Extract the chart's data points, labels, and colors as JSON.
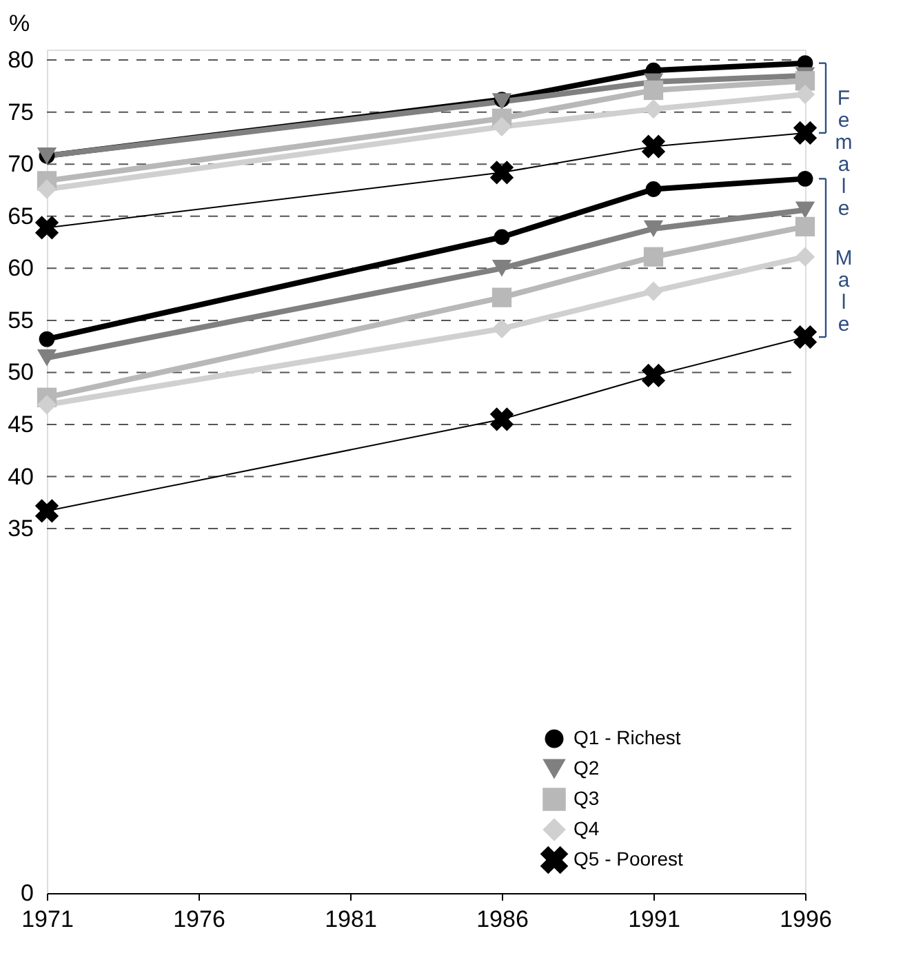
{
  "chart_data": {
    "type": "line",
    "ylabel": "%",
    "x": [
      1971,
      1986,
      1991,
      1996
    ],
    "xlim": [
      1971,
      1996
    ],
    "xticks": [
      1971,
      1976,
      1981,
      1986,
      1991,
      1996
    ],
    "ylim": [
      0,
      81
    ],
    "yticks": [
      0,
      35,
      40,
      45,
      50,
      55,
      60,
      65,
      70,
      75,
      80
    ],
    "grid": "y",
    "legend": "bottom right",
    "line_style": "solid",
    "annotations": [
      "Female",
      "Male"
    ],
    "series": [
      {
        "name": "Q1 - Richest",
        "color": "#000000",
        "marker": "circle",
        "values": [
          70.8,
          76.2,
          79.0,
          79.7
        ]
      },
      {
        "name": "Q2",
        "color": "#808080",
        "marker": "triangle",
        "values": [
          70.8,
          76.0,
          77.9,
          78.5
        ]
      },
      {
        "name": "Q3",
        "color": "#b8b8b8",
        "marker": "square",
        "values": [
          68.4,
          74.4,
          77.1,
          78.0
        ]
      },
      {
        "name": "Q4",
        "color": "#d0d0d0",
        "marker": "diamond",
        "values": [
          67.6,
          73.6,
          75.3,
          76.7
        ]
      },
      {
        "name": "Q5 - Poorest",
        "color": "#000000",
        "marker": "cross",
        "values": [
          63.9,
          69.2,
          71.7,
          73.0
        ]
      },
      {
        "color": "#000000",
        "marker": "circle",
        "values": [
          53.2,
          63.0,
          67.6,
          68.6
        ]
      },
      {
        "color": "#808080",
        "marker": "triangle",
        "values": [
          51.4,
          60.0,
          63.8,
          65.6
        ]
      },
      {
        "color": "#b8b8b8",
        "marker": "square",
        "values": [
          47.6,
          57.2,
          61.1,
          64.0
        ]
      },
      {
        "color": "#d0d0d0",
        "marker": "diamond",
        "values": [
          46.9,
          54.2,
          57.8,
          61.1
        ]
      },
      {
        "color": "#000000",
        "marker": "cross",
        "values": [
          36.7,
          45.5,
          49.7,
          53.4
        ]
      }
    ]
  }
}
